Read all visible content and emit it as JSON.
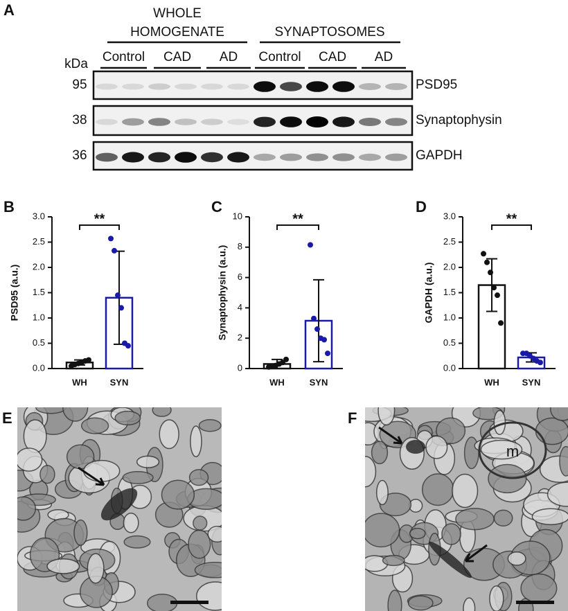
{
  "panel_labels": {
    "a": "A",
    "b": "B",
    "c": "C",
    "d": "D",
    "e": "E",
    "f": "F"
  },
  "blot": {
    "groups": [
      {
        "line1": "WHOLE",
        "line2": "HOMOGENATE"
      },
      {
        "line1": "SYNAPTOSOMES"
      }
    ],
    "subgroups": [
      "Control",
      "CAD",
      "AD",
      "Control",
      "CAD",
      "AD"
    ],
    "unit": "kDa",
    "rows": [
      {
        "kda": "95",
        "protein": "PSD95"
      },
      {
        "kda": "38",
        "protein": "Synaptophysin"
      },
      {
        "kda": "36",
        "protein": "GAPDH"
      }
    ]
  },
  "chart_data": [
    {
      "type": "bar",
      "ylabel": "PSD95 (a.u.)",
      "categories": [
        "WH",
        "SYN"
      ],
      "values": [
        0.12,
        1.4
      ],
      "errors": [
        0.05,
        0.92
      ],
      "points": [
        [
          0.05,
          0.08,
          0.1,
          0.12,
          0.15,
          0.17
        ],
        [
          2.57,
          2.33,
          1.45,
          1.2,
          0.5,
          0.45
        ]
      ],
      "colors": [
        "#111111",
        "#1a1aa8"
      ],
      "ylim": [
        0,
        3
      ],
      "yticks": [
        {
          "value": 0,
          "label": "0.0"
        },
        0.5,
        {
          "value": 1,
          "label": "1.0"
        },
        1.5,
        {
          "value": 2,
          "label": "2.0"
        },
        2.5,
        {
          "value": 3,
          "label": "3.0"
        }
      ],
      "significance": "**"
    },
    {
      "type": "bar",
      "ylabel": "Synaptophysin (a.u.)",
      "categories": [
        "WH",
        "SYN"
      ],
      "values": [
        0.3,
        3.15
      ],
      "errors": [
        0.3,
        2.7
      ],
      "points": [
        [
          0.1,
          0.15,
          0.2,
          0.3,
          0.4,
          0.6
        ],
        [
          8.15,
          3.3,
          2.6,
          2.0,
          1.9,
          1.0
        ]
      ],
      "colors": [
        "#111111",
        "#1a1aa8"
      ],
      "ylim": [
        0,
        10
      ],
      "yticks": [
        0,
        2,
        4,
        6,
        8,
        10
      ],
      "significance": "**"
    },
    {
      "type": "bar",
      "ylabel": "GAPDH (a.u.)",
      "categories": [
        "WH",
        "SYN"
      ],
      "values": [
        1.65,
        0.22
      ],
      "errors": [
        0.52,
        0.09
      ],
      "points": [
        [
          2.27,
          2.1,
          1.9,
          1.6,
          1.45,
          0.9
        ],
        [
          0.3,
          0.3,
          0.25,
          0.2,
          0.15,
          0.12
        ]
      ],
      "colors": [
        "#111111",
        "#1a1aa8"
      ],
      "ylim": [
        0,
        3
      ],
      "yticks": [
        {
          "value": 0,
          "label": "0.0"
        },
        0.5,
        {
          "value": 1,
          "label": "1.0"
        },
        1.5,
        {
          "value": 2,
          "label": "2.0"
        },
        2.5,
        {
          "value": 3,
          "label": "3.0"
        }
      ],
      "significance": "**"
    }
  ],
  "micrographs": {
    "f_label": "m"
  }
}
